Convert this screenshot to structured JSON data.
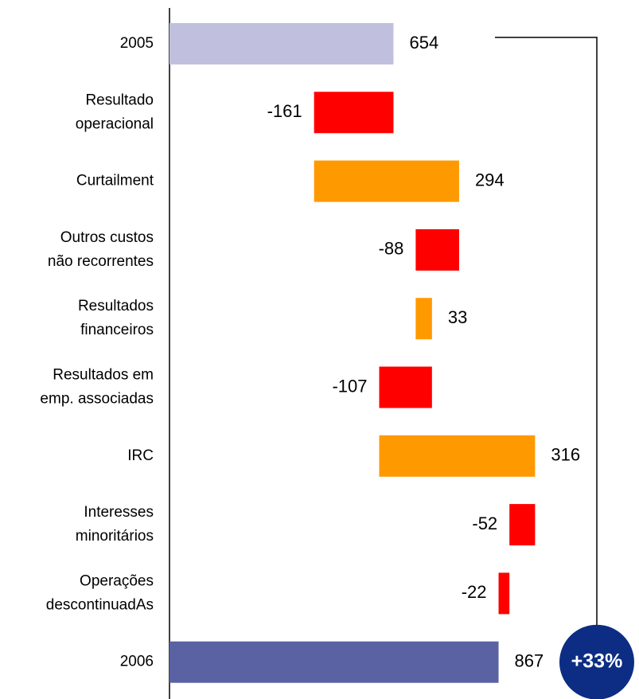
{
  "chart_data": {
    "type": "waterfall",
    "categories": [
      [
        "2005"
      ],
      [
        "Resultado",
        "operacional"
      ],
      [
        "Curtailment"
      ],
      [
        "Outros custos",
        "não recorrentes"
      ],
      [
        "Resultados",
        "financeiros"
      ],
      [
        "Resultados em",
        "emp. associadas"
      ],
      [
        "IRC"
      ],
      [
        "Interesses",
        "minoritários"
      ],
      [
        "Operações",
        "descontinuadAs"
      ],
      [
        "2006"
      ]
    ],
    "values": [
      654,
      -161,
      294,
      -88,
      33,
      -107,
      316,
      -52,
      -22,
      867
    ],
    "colors": [
      "#c0c0de",
      "#ff0000",
      "#ff9900",
      "#ff0000",
      "#ff9900",
      "#ff0000",
      "#ff9900",
      "#ff0000",
      "#ff0000",
      "#5a62a4"
    ],
    "xlim": [
      200,
      1100
    ],
    "annotation": "+33%",
    "annotation_color": "#0c2d83"
  }
}
